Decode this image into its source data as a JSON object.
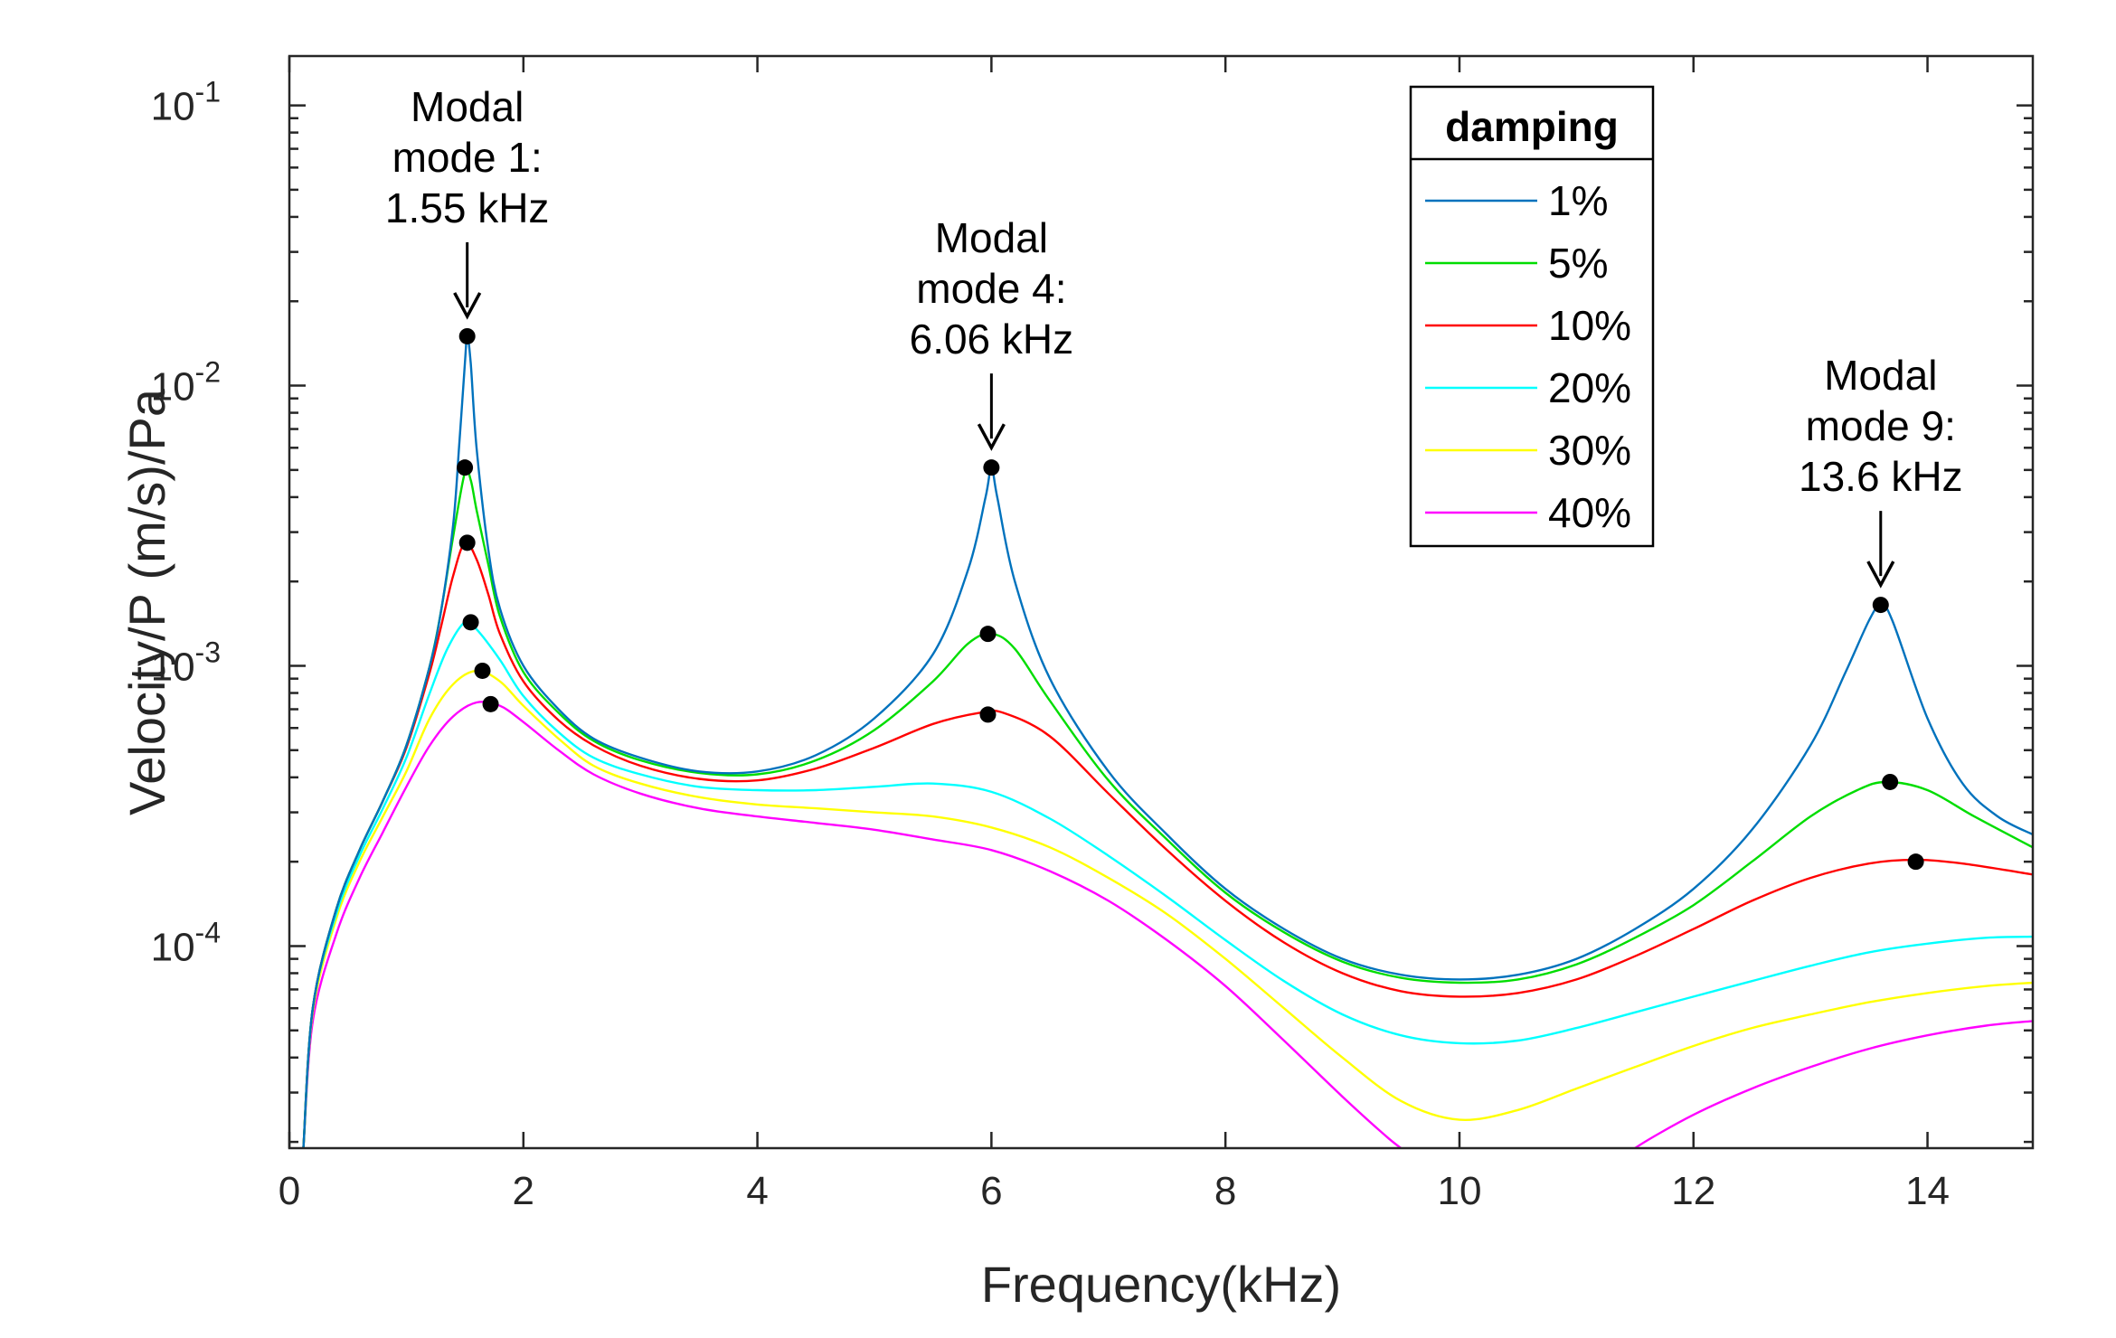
{
  "chart_data": {
    "type": "line",
    "xlabel": "Frequency(kHz)",
    "ylabel": "Velocity/P (m/s)/Pa",
    "xlim": [
      0,
      14.9
    ],
    "ylim": [
      1.9e-05,
      0.15
    ],
    "yscale": "log",
    "xticks": [
      "0",
      "2",
      "4",
      "6",
      "8",
      "10",
      "12",
      "14"
    ],
    "yticks": [
      {
        "base": "10",
        "exp": "-1",
        "value": 0.1
      },
      {
        "base": "10",
        "exp": "-2",
        "value": 0.01
      },
      {
        "base": "10",
        "exp": "-3",
        "value": 0.001
      },
      {
        "base": "10",
        "exp": "-4",
        "value": 0.0001
      }
    ],
    "grid": false,
    "legend": {
      "title": "damping",
      "placement": "top-right"
    },
    "series": [
      {
        "name": "1%",
        "color": "#0072BD",
        "points": [
          [
            0.12,
            1.9e-05
          ],
          [
            0.2,
            6e-05
          ],
          [
            0.4,
            0.000135
          ],
          [
            0.6,
            0.00022
          ],
          [
            0.8,
            0.00033
          ],
          [
            1.0,
            0.00052
          ],
          [
            1.2,
            0.001
          ],
          [
            1.3,
            0.0016
          ],
          [
            1.4,
            0.0032
          ],
          [
            1.45,
            0.006
          ],
          [
            1.5,
            0.012
          ],
          [
            1.52,
            0.015
          ],
          [
            1.55,
            0.012
          ],
          [
            1.6,
            0.006
          ],
          [
            1.7,
            0.0026
          ],
          [
            1.8,
            0.0016
          ],
          [
            2.0,
            0.001
          ],
          [
            2.3,
            0.0007
          ],
          [
            2.6,
            0.00055
          ],
          [
            3.0,
            0.00047
          ],
          [
            3.5,
            0.00042
          ],
          [
            4.0,
            0.00042
          ],
          [
            4.5,
            0.00048
          ],
          [
            5.0,
            0.00065
          ],
          [
            5.5,
            0.0011
          ],
          [
            5.8,
            0.0022
          ],
          [
            5.95,
            0.004
          ],
          [
            6.0,
            0.0051
          ],
          [
            6.05,
            0.004
          ],
          [
            6.2,
            0.002
          ],
          [
            6.5,
            0.0009
          ],
          [
            7.0,
            0.00042
          ],
          [
            7.5,
            0.00025
          ],
          [
            8.0,
            0.00016
          ],
          [
            8.5,
            0.000115
          ],
          [
            9.0,
            9e-05
          ],
          [
            9.5,
            7.9e-05
          ],
          [
            10.0,
            7.6e-05
          ],
          [
            10.5,
            7.9e-05
          ],
          [
            11.0,
            9e-05
          ],
          [
            11.5,
            0.000115
          ],
          [
            12.0,
            0.00016
          ],
          [
            12.5,
            0.00026
          ],
          [
            13.0,
            0.00052
          ],
          [
            13.3,
            0.00095
          ],
          [
            13.5,
            0.00145
          ],
          [
            13.6,
            0.00165
          ],
          [
            13.7,
            0.00145
          ],
          [
            14.0,
            0.00065
          ],
          [
            14.3,
            0.00038
          ],
          [
            14.6,
            0.00029
          ],
          [
            14.9,
            0.00025
          ]
        ]
      },
      {
        "name": "5%",
        "color": "#00DD00",
        "points": [
          [
            0.12,
            1.9e-05
          ],
          [
            0.2,
            6e-05
          ],
          [
            0.4,
            0.000135
          ],
          [
            0.6,
            0.00022
          ],
          [
            0.8,
            0.00033
          ],
          [
            1.0,
            0.00052
          ],
          [
            1.2,
            0.001
          ],
          [
            1.3,
            0.0016
          ],
          [
            1.4,
            0.0029
          ],
          [
            1.5,
            0.0049
          ],
          [
            1.55,
            0.0046
          ],
          [
            1.6,
            0.0036
          ],
          [
            1.7,
            0.0023
          ],
          [
            1.8,
            0.0015
          ],
          [
            2.0,
            0.00095
          ],
          [
            2.3,
            0.00068
          ],
          [
            2.6,
            0.00054
          ],
          [
            3.0,
            0.00046
          ],
          [
            3.5,
            0.000415
          ],
          [
            4.0,
            0.00041
          ],
          [
            4.5,
            0.00046
          ],
          [
            5.0,
            0.00059
          ],
          [
            5.5,
            0.00088
          ],
          [
            5.8,
            0.0012
          ],
          [
            6.0,
            0.0013
          ],
          [
            6.2,
            0.00115
          ],
          [
            6.5,
            0.00075
          ],
          [
            7.0,
            0.00039
          ],
          [
            7.5,
            0.00024
          ],
          [
            8.0,
            0.000155
          ],
          [
            8.5,
            0.000112
          ],
          [
            9.0,
            8.8e-05
          ],
          [
            9.5,
            7.7e-05
          ],
          [
            10.0,
            7.4e-05
          ],
          [
            10.5,
            7.6e-05
          ],
          [
            11.0,
            8.6e-05
          ],
          [
            11.5,
            0.000107
          ],
          [
            12.0,
            0.00014
          ],
          [
            12.5,
            0.0002
          ],
          [
            13.0,
            0.00029
          ],
          [
            13.4,
            0.00036
          ],
          [
            13.65,
            0.000385
          ],
          [
            14.0,
            0.00036
          ],
          [
            14.4,
            0.00029
          ],
          [
            14.9,
            0.000225
          ]
        ]
      },
      {
        "name": "10%",
        "color": "#FF0000",
        "points": [
          [
            0.12,
            1.9e-05
          ],
          [
            0.2,
            6e-05
          ],
          [
            0.4,
            0.000135
          ],
          [
            0.6,
            0.00022
          ],
          [
            0.8,
            0.00033
          ],
          [
            1.0,
            0.00051
          ],
          [
            1.2,
            0.00095
          ],
          [
            1.3,
            0.0014
          ],
          [
            1.4,
            0.0021
          ],
          [
            1.5,
            0.00275
          ],
          [
            1.6,
            0.0024
          ],
          [
            1.7,
            0.0018
          ],
          [
            1.8,
            0.0013
          ],
          [
            2.0,
            0.00088
          ],
          [
            2.3,
            0.00064
          ],
          [
            2.6,
            0.00052
          ],
          [
            3.0,
            0.00044
          ],
          [
            3.5,
            0.000395
          ],
          [
            4.0,
            0.00039
          ],
          [
            4.5,
            0.00043
          ],
          [
            5.0,
            0.00051
          ],
          [
            5.5,
            0.00062
          ],
          [
            5.9,
            0.00068
          ],
          [
            6.1,
            0.00068
          ],
          [
            6.5,
            0.00056
          ],
          [
            7.0,
            0.00035
          ],
          [
            7.5,
            0.00022
          ],
          [
            8.0,
            0.000145
          ],
          [
            8.5,
            0.000103
          ],
          [
            9.0,
            8e-05
          ],
          [
            9.5,
            6.9e-05
          ],
          [
            10.0,
            6.6e-05
          ],
          [
            10.5,
            6.8e-05
          ],
          [
            11.0,
            7.6e-05
          ],
          [
            11.5,
            9.2e-05
          ],
          [
            12.0,
            0.000115
          ],
          [
            12.5,
            0.000145
          ],
          [
            13.0,
            0.000175
          ],
          [
            13.5,
            0.000197
          ],
          [
            13.9,
            0.000203
          ],
          [
            14.3,
            0.000197
          ],
          [
            14.9,
            0.00018
          ]
        ]
      },
      {
        "name": "20%",
        "color": "#00FFFF",
        "points": [
          [
            0.12,
            1.9e-05
          ],
          [
            0.2,
            6e-05
          ],
          [
            0.4,
            0.00013
          ],
          [
            0.6,
            0.00021
          ],
          [
            0.8,
            0.00031
          ],
          [
            1.0,
            0.00047
          ],
          [
            1.2,
            0.0008
          ],
          [
            1.35,
            0.00115
          ],
          [
            1.5,
            0.00143
          ],
          [
            1.6,
            0.00135
          ],
          [
            1.8,
            0.00105
          ],
          [
            2.0,
            0.00078
          ],
          [
            2.3,
            0.00058
          ],
          [
            2.6,
            0.00047
          ],
          [
            3.0,
            0.00041
          ],
          [
            3.5,
            0.00037
          ],
          [
            4.0,
            0.00036
          ],
          [
            4.5,
            0.00036
          ],
          [
            5.0,
            0.00037
          ],
          [
            5.5,
            0.00038
          ],
          [
            6.0,
            0.000355
          ],
          [
            6.5,
            0.000285
          ],
          [
            7.0,
            0.00021
          ],
          [
            7.5,
            0.00015
          ],
          [
            8.0,
            0.000105
          ],
          [
            8.5,
            7.5e-05
          ],
          [
            9.0,
            5.7e-05
          ],
          [
            9.5,
            4.8e-05
          ],
          [
            10.0,
            4.5e-05
          ],
          [
            10.5,
            4.6e-05
          ],
          [
            11.0,
            5.1e-05
          ],
          [
            11.5,
            5.8e-05
          ],
          [
            12.0,
            6.6e-05
          ],
          [
            12.5,
            7.5e-05
          ],
          [
            13.0,
            8.5e-05
          ],
          [
            13.5,
            9.5e-05
          ],
          [
            14.0,
            0.000102
          ],
          [
            14.5,
            0.000107
          ],
          [
            14.9,
            0.000108
          ]
        ]
      },
      {
        "name": "30%",
        "color": "#FFFF00",
        "points": [
          [
            0.12,
            1.9e-05
          ],
          [
            0.2,
            5.8e-05
          ],
          [
            0.4,
            0.000125
          ],
          [
            0.6,
            0.0002
          ],
          [
            0.8,
            0.00029
          ],
          [
            1.0,
            0.00042
          ],
          [
            1.2,
            0.00065
          ],
          [
            1.4,
            0.00086
          ],
          [
            1.6,
            0.00096
          ],
          [
            1.8,
            0.00088
          ],
          [
            2.0,
            0.00072
          ],
          [
            2.3,
            0.00055
          ],
          [
            2.6,
            0.00044
          ],
          [
            3.0,
            0.00038
          ],
          [
            3.5,
            0.00034
          ],
          [
            4.0,
            0.00032
          ],
          [
            4.5,
            0.00031
          ],
          [
            5.0,
            0.0003
          ],
          [
            5.5,
            0.00029
          ],
          [
            6.0,
            0.000265
          ],
          [
            6.5,
            0.000225
          ],
          [
            7.0,
            0.000175
          ],
          [
            7.5,
            0.00013
          ],
          [
            8.0,
            9e-05
          ],
          [
            8.5,
            6e-05
          ],
          [
            9.0,
            4e-05
          ],
          [
            9.5,
            2.8e-05
          ],
          [
            10.0,
            2.4e-05
          ],
          [
            10.5,
            2.6e-05
          ],
          [
            11.0,
            3.1e-05
          ],
          [
            11.5,
            3.7e-05
          ],
          [
            12.0,
            4.4e-05
          ],
          [
            12.5,
            5.1e-05
          ],
          [
            13.0,
            5.7e-05
          ],
          [
            13.5,
            6.3e-05
          ],
          [
            14.0,
            6.8e-05
          ],
          [
            14.5,
            7.2e-05
          ],
          [
            14.9,
            7.4e-05
          ]
        ]
      },
      {
        "name": "40%",
        "color": "#FF00FF",
        "points": [
          [
            0.12,
            1.9e-05
          ],
          [
            0.2,
            5.4e-05
          ],
          [
            0.4,
            0.00011
          ],
          [
            0.6,
            0.000175
          ],
          [
            0.8,
            0.000255
          ],
          [
            1.0,
            0.00037
          ],
          [
            1.2,
            0.00052
          ],
          [
            1.4,
            0.00066
          ],
          [
            1.6,
            0.00074
          ],
          [
            1.8,
            0.00072
          ],
          [
            2.0,
            0.00063
          ],
          [
            2.3,
            0.0005
          ],
          [
            2.6,
            0.00041
          ],
          [
            3.0,
            0.00035
          ],
          [
            3.5,
            0.00031
          ],
          [
            4.0,
            0.00029
          ],
          [
            4.5,
            0.000275
          ],
          [
            5.0,
            0.00026
          ],
          [
            5.5,
            0.00024
          ],
          [
            6.0,
            0.00022
          ],
          [
            6.5,
            0.000185
          ],
          [
            7.0,
            0.000145
          ],
          [
            7.5,
            0.000105
          ],
          [
            8.0,
            7.2e-05
          ],
          [
            8.5,
            4.6e-05
          ],
          [
            9.0,
            2.9e-05
          ],
          [
            9.4,
            2.05e-05
          ],
          [
            9.62,
            1.75e-05
          ]
        ],
        "points2": [
          [
            11.45,
            1.75e-05
          ],
          [
            11.5,
            1.9e-05
          ],
          [
            12.0,
            2.5e-05
          ],
          [
            12.5,
            3.1e-05
          ],
          [
            13.0,
            3.7e-05
          ],
          [
            13.5,
            4.3e-05
          ],
          [
            14.0,
            4.8e-05
          ],
          [
            14.5,
            5.2e-05
          ],
          [
            14.9,
            5.4e-05
          ]
        ]
      }
    ],
    "peak_markers": [
      [
        1.52,
        0.015
      ],
      [
        1.5,
        0.0051
      ],
      [
        1.52,
        0.00275
      ],
      [
        1.55,
        0.00143
      ],
      [
        1.65,
        0.00096
      ],
      [
        1.72,
        0.00073
      ],
      [
        6.0,
        0.0051
      ],
      [
        5.97,
        0.0013
      ],
      [
        5.97,
        0.00067
      ],
      [
        13.6,
        0.00165
      ],
      [
        13.68,
        0.000385
      ],
      [
        13.9,
        0.0002
      ]
    ],
    "annotations": [
      {
        "lines": [
          "Modal",
          "mode 1:",
          "1.55 kHz"
        ],
        "target": [
          1.52,
          0.015
        ]
      },
      {
        "lines": [
          "Modal",
          "mode 4:",
          "6.06 kHz"
        ],
        "target": [
          6.0,
          0.0051
        ]
      },
      {
        "lines": [
          "Modal",
          "mode 9:",
          "13.6 kHz"
        ],
        "target": [
          13.6,
          0.00165
        ]
      }
    ]
  }
}
